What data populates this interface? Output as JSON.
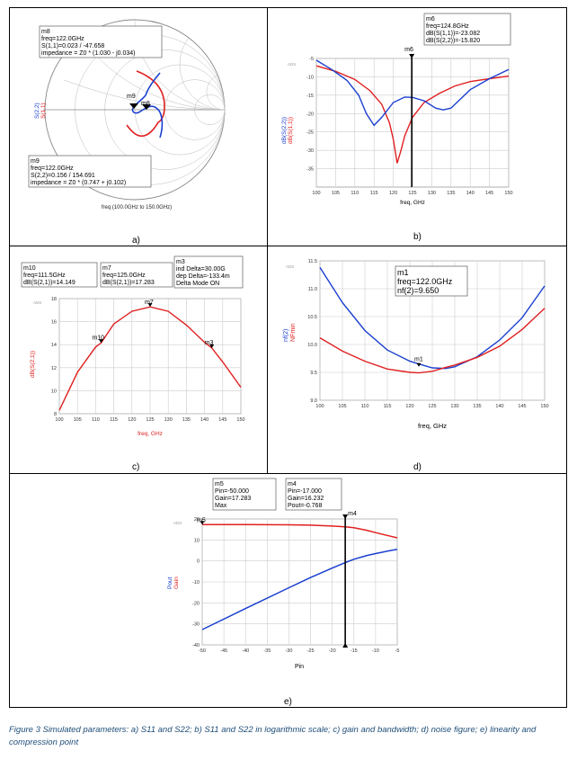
{
  "panels": {
    "a": {
      "label": "a)",
      "smith": {
        "xlabel": "freq (100.0GHz to 150.0GHz)",
        "ylabel_s22": "S(2,2)",
        "ylabel_s11": "S(1,1)",
        "colors": {
          "s11": "#e02020",
          "s22": "#1a3fd0"
        },
        "m8": {
          "name": "m8",
          "lines": [
            "m8",
            "freq=122.0GHz",
            "S(1,1)=0.023 / -47.658",
            "impedance = Z0 * (1.030 - j0.034)"
          ]
        },
        "m9": {
          "name": "m9",
          "lines": [
            "m9",
            "freq=122.0GHz",
            "S(2,2)=0.156 / 154.691",
            "impedance = Z0 * (0.747 + j0.102)"
          ]
        }
      }
    },
    "b": {
      "label": "b)",
      "chart_data": {
        "type": "line",
        "title": "",
        "xlabel": "freq, GHz",
        "ylabel": [
          "dB(S(2,2))",
          "dB(S(1,1))"
        ],
        "xlim": [
          100,
          150
        ],
        "ylim": [
          -40,
          -5
        ],
        "xticks": [
          100,
          105,
          110,
          115,
          120,
          125,
          130,
          135,
          140,
          145,
          150
        ],
        "yticks": [
          -5,
          -10,
          -15,
          -20,
          -25,
          -30,
          -35
        ],
        "series": [
          {
            "name": "dB(S(1,1))",
            "color": "#e02020",
            "x": [
              100,
              105,
              110,
              114,
              117,
              119,
              120,
              121,
              122,
              123,
              125,
              128,
              132,
              136,
              140,
              145,
              150
            ],
            "y": [
              -7,
              -8.5,
              -10.7,
              -13.8,
              -17.5,
              -22.5,
              -27,
              -33.5,
              -30,
              -26,
              -21,
              -17,
              -14.5,
              -12.5,
              -11.3,
              -10.5,
              -9.8
            ]
          },
          {
            "name": "dB(S(2,2))",
            "color": "#1a3fd0",
            "x": [
              100,
              104,
              108,
              111,
              113,
              115,
              117,
              120,
              123,
              125,
              128,
              131,
              133,
              135,
              137,
              140,
              145,
              150
            ],
            "y": [
              -5.5,
              -8,
              -11,
              -15,
              -20,
              -23.2,
              -21,
              -17,
              -15.5,
              -15.6,
              -16.5,
              -18.5,
              -19,
              -18.5,
              -16.5,
              -13.5,
              -10.5,
              -8
            ]
          }
        ],
        "marker": {
          "name": "m6",
          "x": 124.8,
          "lines": [
            "m6",
            "freq=124.8GHz",
            "dB(S(1,1))=-23.082",
            "dB(S(2,2))=-15.820"
          ]
        }
      }
    },
    "c": {
      "label": "c)",
      "chart_data": {
        "type": "line",
        "xlabel": "freq, GHz",
        "ylabel": "dB(S(2,1))",
        "xlim": [
          100,
          150
        ],
        "ylim": [
          8,
          18
        ],
        "xticks": [
          100,
          105,
          110,
          115,
          120,
          125,
          130,
          135,
          140,
          145,
          150
        ],
        "yticks": [
          8,
          10,
          12,
          14,
          16,
          18
        ],
        "series": [
          {
            "name": "dB(S(2,1))",
            "color": "#e02020",
            "x": [
              100,
              105,
              110,
              111.5,
              115,
              120,
              125,
              130,
              135,
              140,
              142,
              145,
              150
            ],
            "y": [
              8.3,
              11.6,
              13.8,
              14.149,
              15.8,
              16.9,
              17.283,
              16.9,
              15.7,
              14.2,
              13.7,
              12.5,
              10.3
            ]
          }
        ],
        "markers": [
          {
            "name": "m10",
            "x": 111.5,
            "y": 14.149
          },
          {
            "name": "m7",
            "x": 125.0,
            "y": 17.283
          },
          {
            "name": "m3",
            "x": 142,
            "y": 13.7
          }
        ],
        "boxes": [
          {
            "lines": [
              "m10",
              "freq=111.5GHz",
              "dB(S(2,1))=14.149"
            ]
          },
          {
            "lines": [
              "m7",
              "freq=125.0GHz",
              "dB(S(2,1))=17.283"
            ]
          },
          {
            "lines": [
              "m3",
              "ind Delta=30.00G",
              "dep Delta=-133.4m",
              "Delta Mode ON"
            ]
          }
        ]
      }
    },
    "d": {
      "label": "d)",
      "chart_data": {
        "type": "line",
        "xlabel": "freq, GHz",
        "ylabel": [
          "nf(2)",
          "NFmin"
        ],
        "xlim": [
          100,
          150
        ],
        "ylim": [
          9.0,
          11.5
        ],
        "xticks": [
          100,
          105,
          110,
          115,
          120,
          125,
          130,
          135,
          140,
          145,
          150
        ],
        "yticks": [
          9.0,
          9.5,
          10.0,
          10.5,
          11.0,
          11.5
        ],
        "series": [
          {
            "name": "nf(2)",
            "color": "#1a3fd0",
            "x": [
              100,
              105,
              110,
              115,
              120,
              122,
              125,
              128,
              130,
              135,
              140,
              145,
              150
            ],
            "y": [
              11.38,
              10.75,
              10.25,
              9.9,
              9.7,
              9.65,
              9.58,
              9.57,
              9.6,
              9.78,
              10.08,
              10.48,
              11.05
            ]
          },
          {
            "name": "NFmin",
            "color": "#e02020",
            "x": [
              100,
              105,
              110,
              115,
              120,
              122,
              125,
              128,
              130,
              135,
              140,
              145,
              150
            ],
            "y": [
              10.12,
              9.88,
              9.7,
              9.56,
              9.5,
              9.49,
              9.52,
              9.59,
              9.63,
              9.77,
              9.97,
              10.27,
              10.65
            ]
          }
        ],
        "marker": {
          "name": "m1",
          "x": 122.0,
          "y": 9.65,
          "lines": [
            "m1",
            "freq=122.0GHz",
            "nf(2)=9.650"
          ]
        }
      }
    },
    "e": {
      "label": "e)",
      "chart_data": {
        "type": "line",
        "xlabel": "Pin",
        "ylabel": [
          "Pout",
          "Gain"
        ],
        "xlim": [
          -50,
          -5
        ],
        "ylim": [
          -40,
          20
        ],
        "xticks": [
          -50,
          -45,
          -40,
          -35,
          -30,
          -25,
          -20,
          -15,
          -10,
          -5
        ],
        "yticks": [
          20,
          10,
          0,
          -10,
          -20,
          -30,
          -40
        ],
        "series": [
          {
            "name": "Gain",
            "color": "#e02020",
            "x": [
              -50,
              -40,
              -30,
              -25,
              -20,
              -17,
              -15,
              -12,
              -10,
              -7,
              -5
            ],
            "y": [
              17.283,
              17.28,
              17.2,
              17.05,
              16.6,
              16.232,
              15.8,
              14.6,
              13.5,
              12.0,
              11.0
            ]
          },
          {
            "name": "Pout",
            "color": "#1a3fd0",
            "x": [
              -50,
              -40,
              -30,
              -25,
              -20,
              -17,
              -15,
              -12,
              -10,
              -7,
              -5
            ],
            "y": [
              -32.7,
              -22.7,
              -12.8,
              -7.9,
              -3.4,
              -0.768,
              0.8,
              2.6,
              3.5,
              4.8,
              5.5
            ]
          }
        ],
        "markers": [
          {
            "name": "m5",
            "x": -50.0,
            "y": 17.283,
            "lines": [
              "m5",
              "Pin=-50.000",
              "Gain=17.283",
              "Max"
            ]
          },
          {
            "name": "m4",
            "x": -17.0,
            "y": 16.232,
            "lines": [
              "m4",
              "Pin=-17.000",
              "Gain=16.232",
              "Pout=-0.768"
            ]
          }
        ]
      }
    }
  },
  "ads_tag": "ADS",
  "caption": "Figure 3 Simulated parameters: a) S11 and S22; b) S11 and S22 in logarithmic scale; c) gain and bandwidth; d) noise figure; e) linearity and compression point"
}
